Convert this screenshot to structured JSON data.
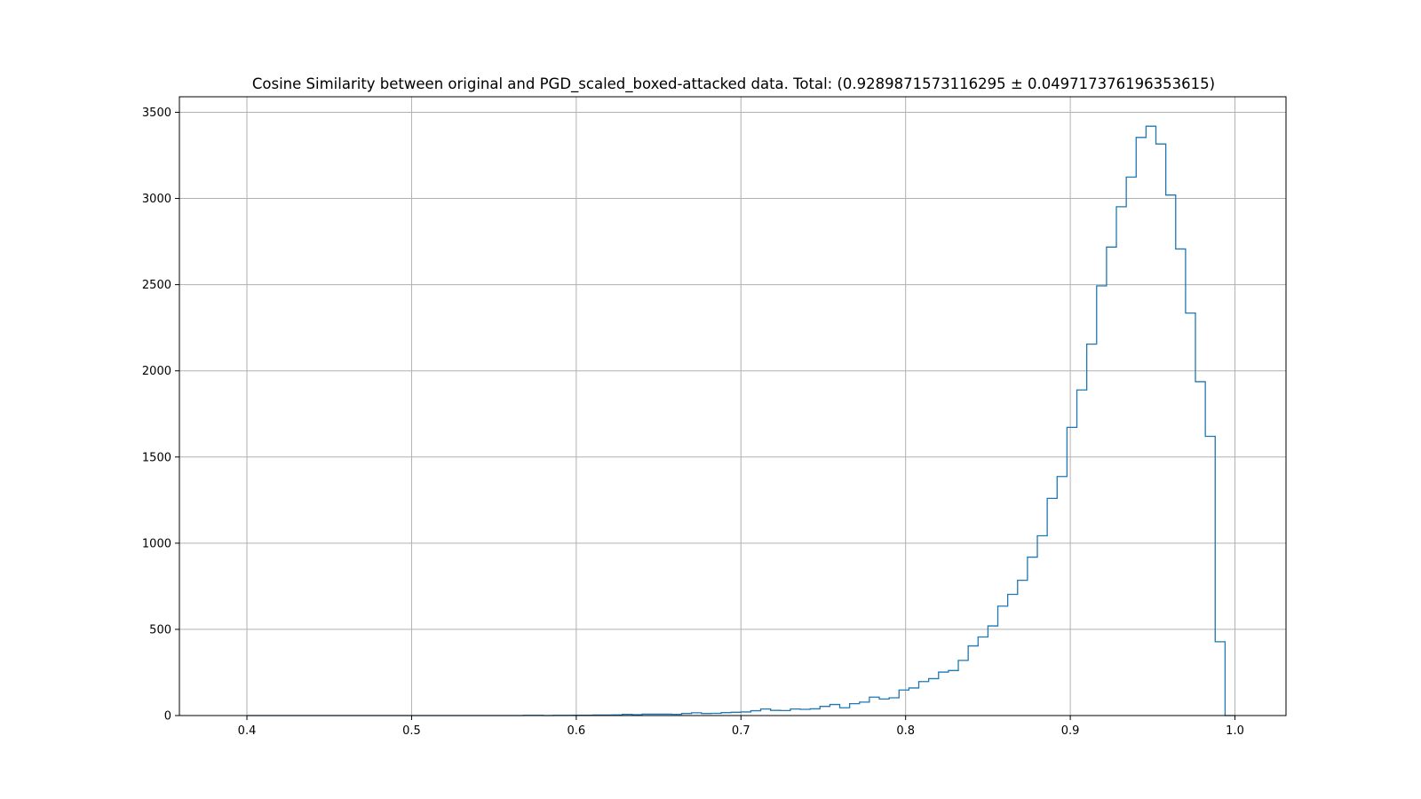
{
  "chart_data": {
    "type": "histogram",
    "title": "Cosine Similarity between original and PGD_scaled_boxed-attacked data. Total: (0.9289871573116295 ± 0.049717376196353615)",
    "xlabel": "",
    "ylabel": "",
    "xlim": [
      0.359,
      1.031
    ],
    "ylim": [
      0,
      3590
    ],
    "xticks": [
      0.4,
      0.5,
      0.6,
      0.7,
      0.8,
      0.9,
      1.0
    ],
    "xtick_labels": [
      "0.4",
      "0.5",
      "0.6",
      "0.7",
      "0.8",
      "0.9",
      "1.0"
    ],
    "yticks": [
      0,
      500,
      1000,
      1500,
      2000,
      2500,
      3000,
      3500
    ],
    "ytick_labels": [
      "0",
      "500",
      "1000",
      "1500",
      "2000",
      "2500",
      "3000",
      "3500"
    ],
    "grid": true,
    "histtype": "step",
    "color": "#1f77b4",
    "bin_range": [
      0.4,
      1.0
    ],
    "bin_width": 0.006,
    "counts": [
      0,
      0,
      0,
      0,
      0,
      0,
      0,
      0,
      0,
      0,
      0,
      0,
      0,
      0,
      0,
      0,
      0,
      0,
      0,
      0,
      0,
      0,
      0,
      0,
      0,
      0,
      0,
      0,
      1,
      1,
      0,
      1,
      1,
      2,
      2,
      3,
      3,
      4,
      7,
      5,
      8,
      8,
      8,
      7,
      12,
      16,
      12,
      13,
      17,
      19,
      21,
      28,
      38,
      30,
      29,
      38,
      36,
      39,
      53,
      64,
      45,
      69,
      78,
      107,
      96,
      103,
      148,
      160,
      197,
      214,
      252,
      261,
      320,
      404,
      456,
      520,
      635,
      703,
      785,
      919,
      1043,
      1260,
      1387,
      1672,
      1889,
      2155,
      2493,
      2718,
      2952,
      3124,
      3354,
      3419,
      3316,
      3020,
      2707,
      2335,
      1937,
      1620,
      428,
      0
    ]
  }
}
